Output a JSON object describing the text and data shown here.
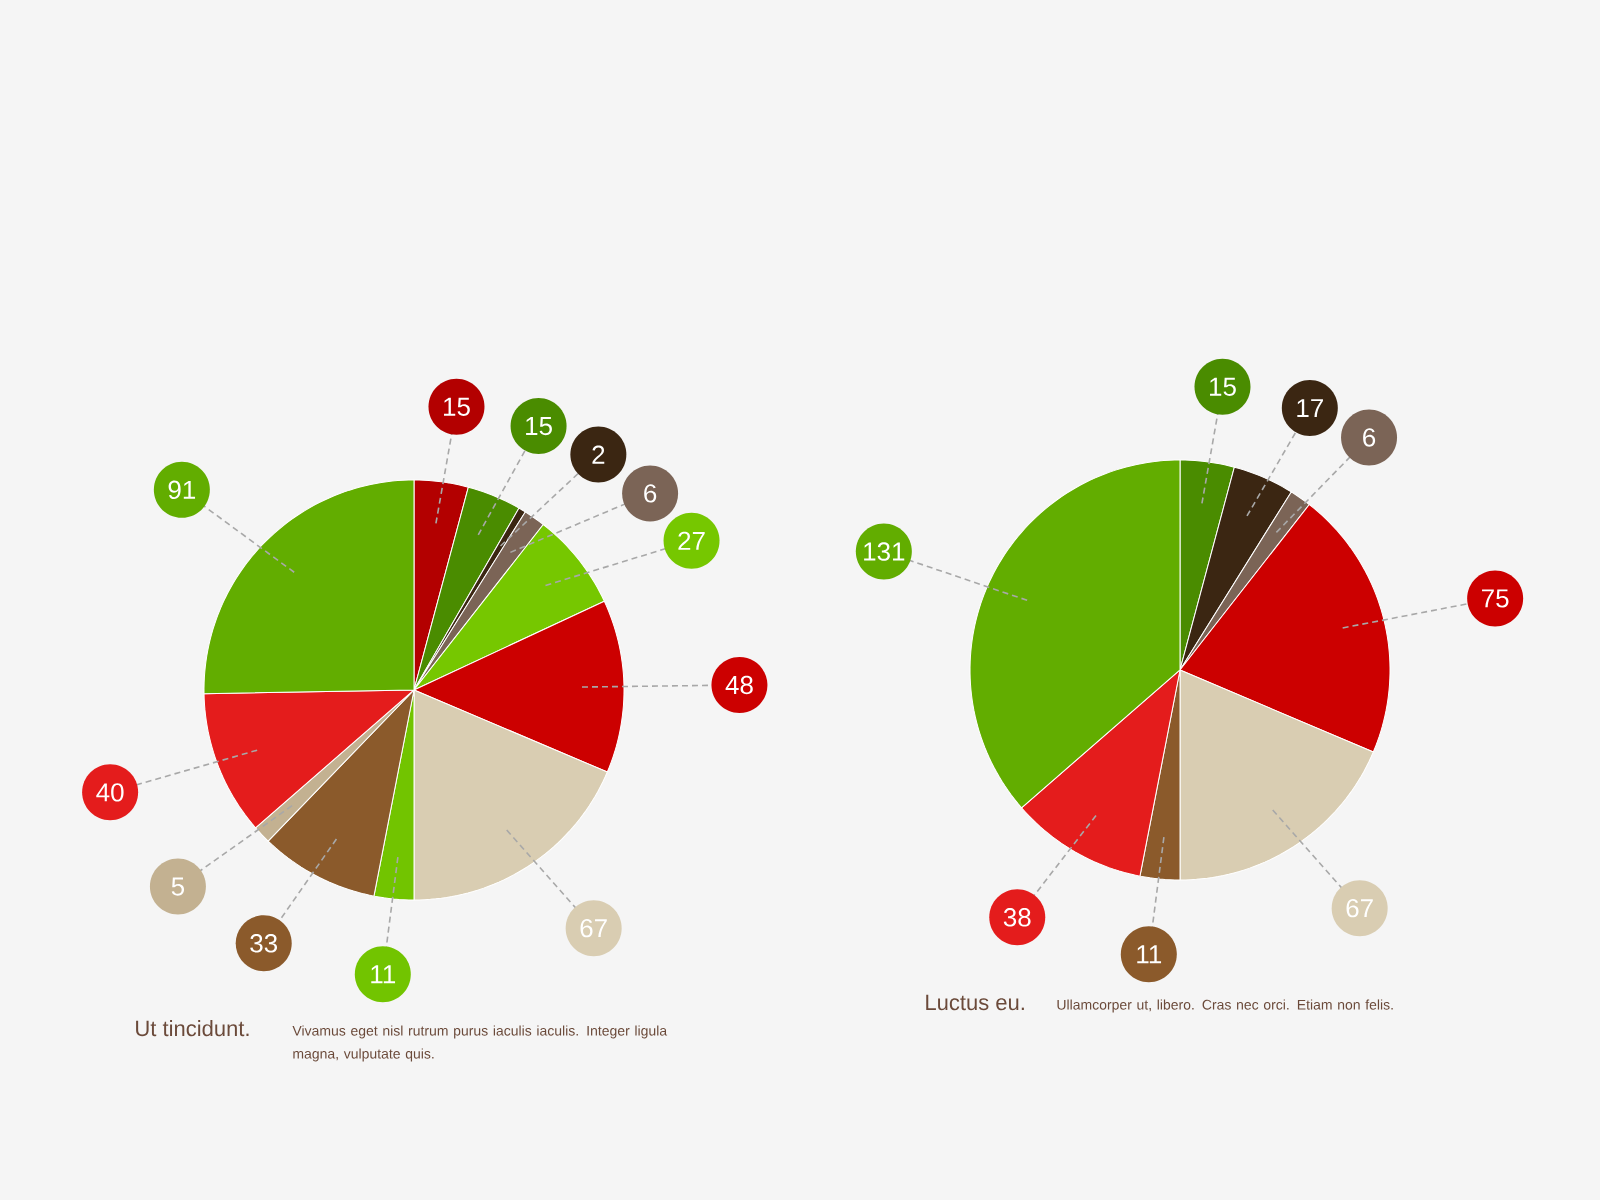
{
  "chart_data": [
    {
      "type": "pie",
      "title": "Ut tincidunt.",
      "subtitle": "Vivamus eget nisl rutrum purus iaculis iaculis. Integer ligula magna, vulputate quis.",
      "categories": [
        null,
        null,
        null,
        null,
        null,
        null,
        null,
        null,
        null,
        null,
        null,
        null
      ],
      "values": [
        15,
        15,
        2,
        6,
        27,
        48,
        67,
        11,
        33,
        5,
        40,
        91
      ],
      "colors": [
        "#b30000",
        "#4a8c00",
        "#3b2612",
        "#7b6456",
        "#76c700",
        "#cc0000",
        "#d9cdb2",
        "#72c400",
        "#8b5a2b",
        "#c3b191",
        "#e41c1c",
        "#62ad00"
      ],
      "data_labels": true
    },
    {
      "type": "pie",
      "title": "Luctus eu.",
      "subtitle": "Ullamcorper ut, libero. Cras nec orci. Etiam non felis.",
      "categories": [
        null,
        null,
        null,
        null,
        null,
        null,
        null,
        null
      ],
      "values": [
        15,
        17,
        6,
        75,
        67,
        11,
        38,
        131
      ],
      "colors": [
        "#4a8c00",
        "#3b2612",
        "#7b6456",
        "#cc0000",
        "#d9cdb2",
        "#8b5a2b",
        "#e41c1c",
        "#62ad00"
      ],
      "data_labels": true
    }
  ]
}
